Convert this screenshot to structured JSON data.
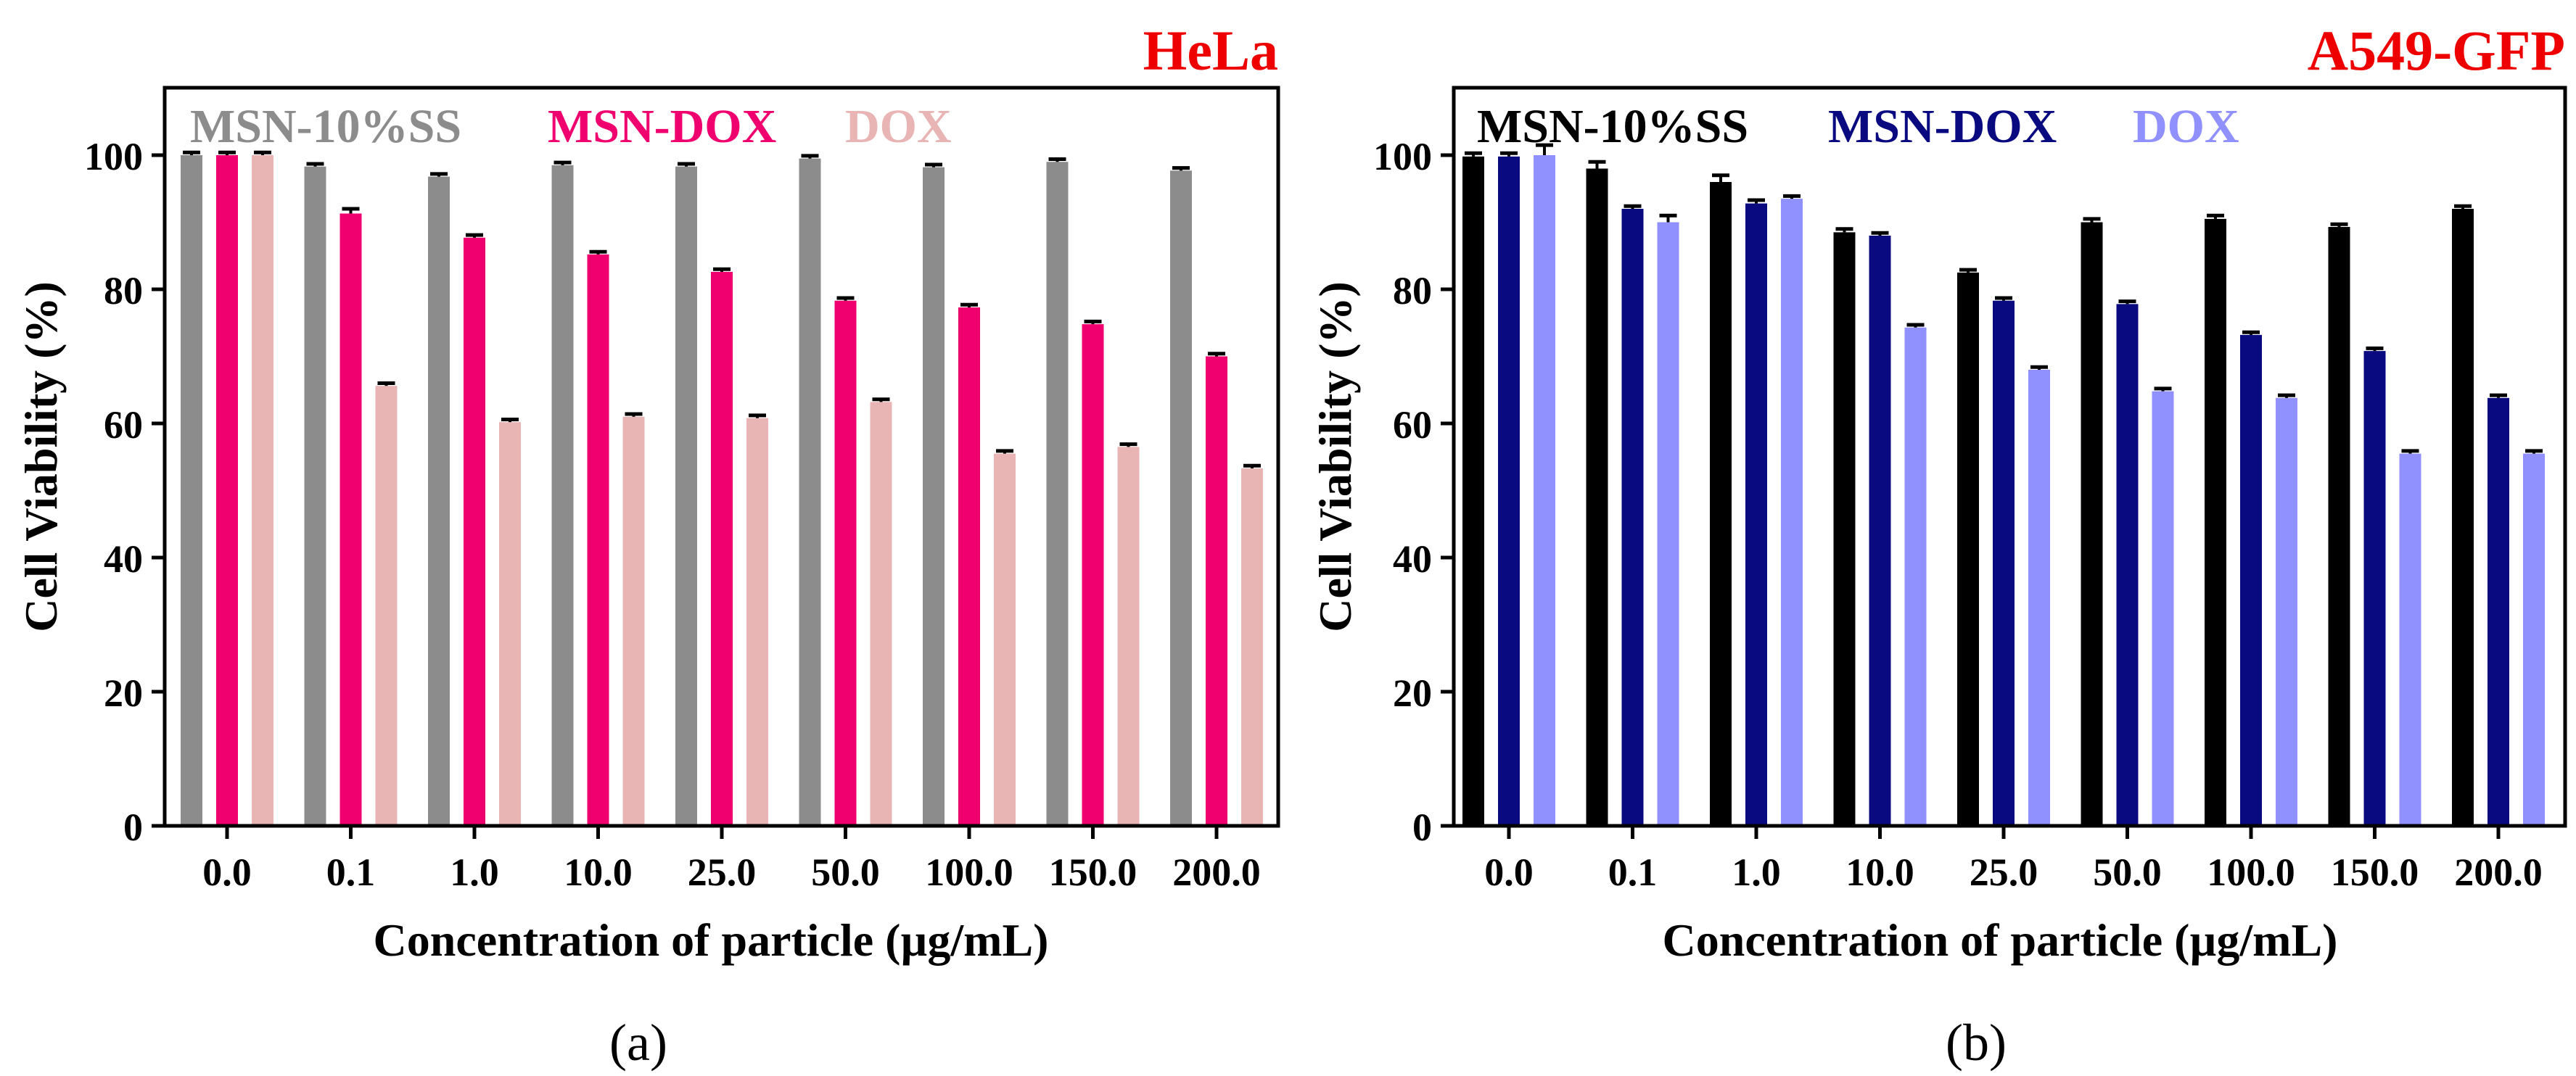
{
  "chart_data": [
    {
      "type": "bar",
      "cell_line": "HeLa",
      "xlabel": "Concentration of particle (µg/mL)",
      "ylabel": "Cell Viability (%)",
      "ylim": [
        0,
        110
      ],
      "yticks": [
        "0",
        "20",
        "40",
        "60",
        "80",
        "100"
      ],
      "categories": [
        "0.0",
        "0.1",
        "1.0",
        "10.0",
        "25.0",
        "50.0",
        "100.0",
        "150.0",
        "200.0"
      ],
      "legend_position": "top-left",
      "panel_label": "(a)",
      "error_bars": true,
      "series": [
        {
          "name": "MSN-10%SS",
          "color": "#8c8c8c",
          "values": [
            100,
            98.3,
            96.8,
            98.5,
            98.3,
            99.5,
            98.2,
            99.0,
            97.7
          ],
          "errors": [
            0.4,
            0.4,
            0.4,
            0.4,
            0.4,
            0.4,
            0.4,
            0.4,
            0.4
          ]
        },
        {
          "name": "MSN-DOX",
          "color": "#f0006f",
          "values": [
            100,
            91.3,
            87.7,
            85.2,
            82.6,
            78.3,
            77.3,
            74.8,
            70.0
          ],
          "errors": [
            0.4,
            0.7,
            0.4,
            0.4,
            0.4,
            0.4,
            0.4,
            0.4,
            0.4
          ]
        },
        {
          "name": "DOX",
          "color": "#e8b4b4",
          "values": [
            100,
            65.6,
            60.2,
            61.0,
            60.8,
            63.2,
            55.5,
            56.5,
            53.3
          ],
          "errors": [
            0.4,
            0.4,
            0.4,
            0.4,
            0.4,
            0.4,
            0.4,
            0.4,
            0.4
          ]
        }
      ]
    },
    {
      "type": "bar",
      "cell_line": "A549-GFP",
      "xlabel": "Concentration of particle (µg/mL)",
      "ylabel": "Cell Viability (%)",
      "ylim": [
        0,
        110
      ],
      "yticks": [
        "0",
        "20",
        "40",
        "60",
        "80",
        "100"
      ],
      "categories": [
        "0.0",
        "0.1",
        "1.0",
        "10.0",
        "25.0",
        "50.0",
        "100.0",
        "150.0",
        "200.0"
      ],
      "legend_position": "top-left",
      "panel_label": "(b)",
      "error_bars": true,
      "series": [
        {
          "name": "MSN-10%SS",
          "color": "#000000",
          "values": [
            99.8,
            98.0,
            96.0,
            88.5,
            82.5,
            90.0,
            90.5,
            89.3,
            92.0
          ],
          "errors": [
            0.5,
            1.0,
            1.0,
            0.5,
            0.4,
            0.5,
            0.5,
            0.4,
            0.4
          ]
        },
        {
          "name": "MSN-DOX",
          "color": "#0a0a80",
          "values": [
            99.8,
            92.0,
            92.8,
            88.0,
            78.3,
            77.8,
            73.2,
            70.8,
            63.8
          ],
          "errors": [
            0.5,
            0.4,
            0.5,
            0.4,
            0.4,
            0.4,
            0.4,
            0.4,
            0.4
          ]
        },
        {
          "name": "DOX",
          "color": "#9090ff",
          "values": [
            100,
            90.0,
            93.5,
            74.3,
            68.0,
            64.8,
            63.8,
            55.5,
            55.5
          ],
          "errors": [
            1.5,
            1.0,
            0.4,
            0.4,
            0.4,
            0.4,
            0.4,
            0.4,
            0.4
          ]
        }
      ]
    }
  ]
}
